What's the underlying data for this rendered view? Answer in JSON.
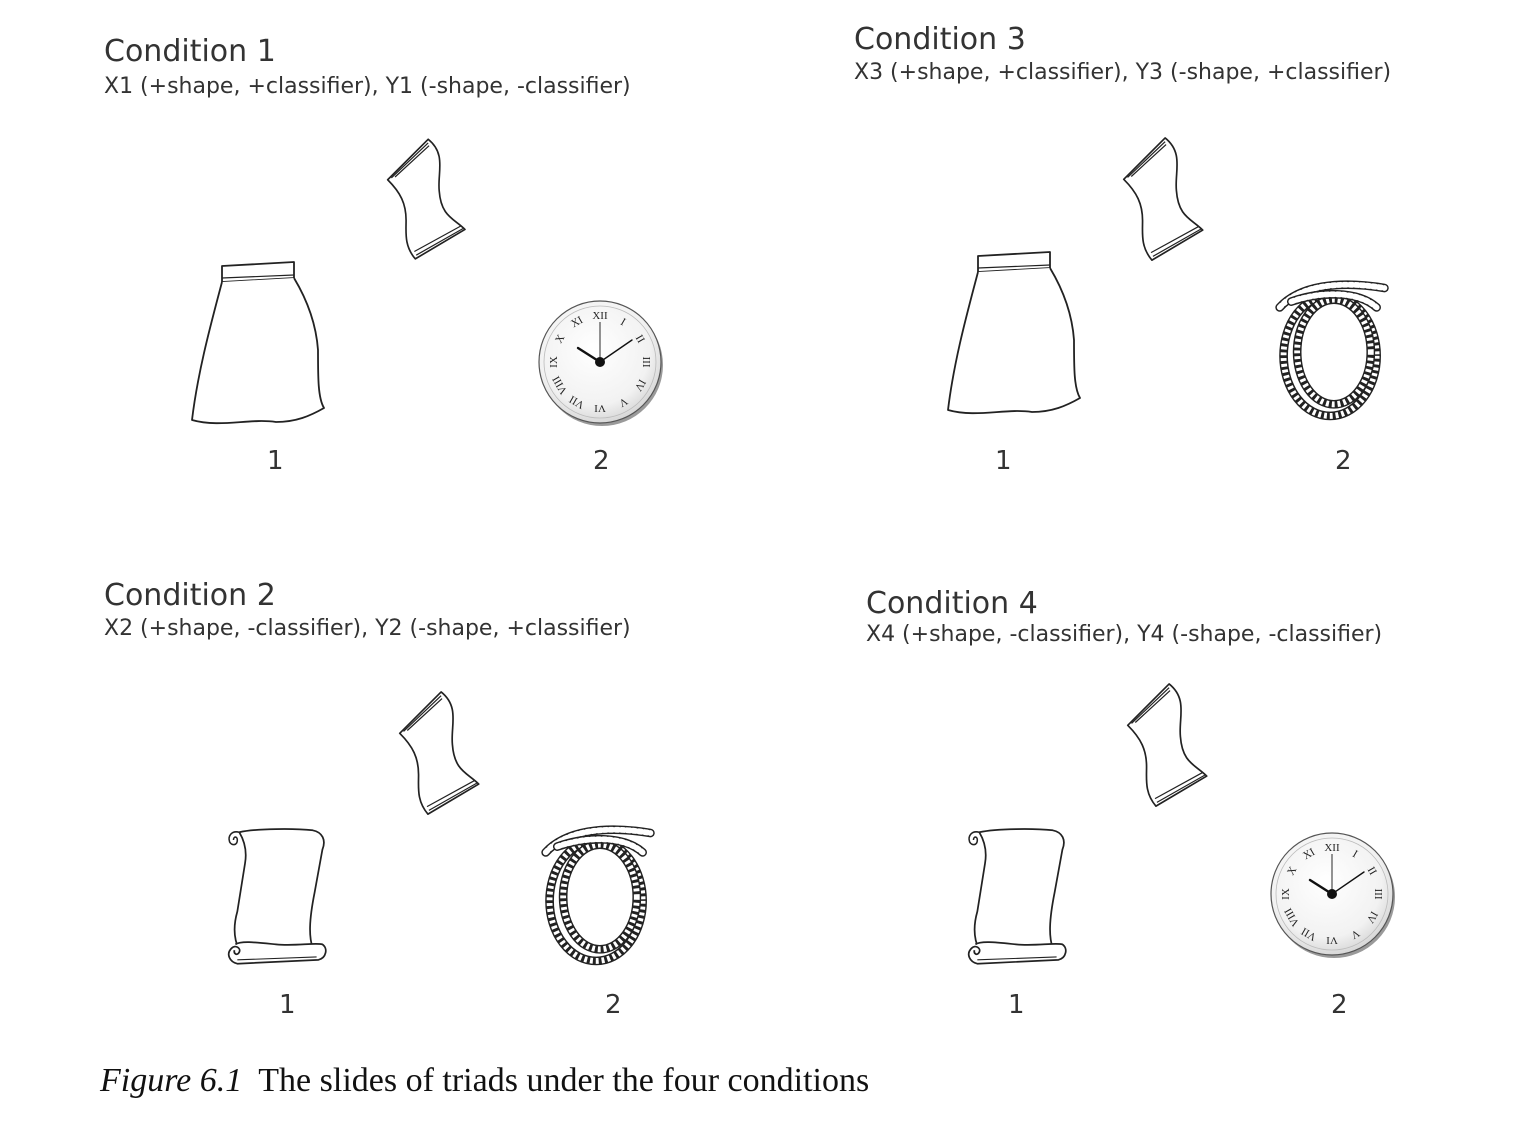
{
  "conditions": [
    {
      "title": "Condition 1",
      "description": "X1 (+shape, +classifier), Y1 (-shape, -classifier)",
      "item_1_label": "1",
      "item_2_label": "2",
      "center_object": "cloth-sheet",
      "item_1_object": "skirt",
      "item_2_object": "clock"
    },
    {
      "title": "Condition 3",
      "description": "X3 (+shape, +classifier), Y3 (-shape, +classifier)",
      "item_1_label": "1",
      "item_2_label": "2",
      "center_object": "cloth-sheet",
      "item_1_object": "skirt",
      "item_2_object": "rope"
    },
    {
      "title": "Condition 2",
      "description": "X2 (+shape, -classifier),  Y2 (-shape, +classifier)",
      "item_1_label": "1",
      "item_2_label": "2",
      "center_object": "cloth-sheet",
      "item_1_object": "scroll",
      "item_2_object": "rope"
    },
    {
      "title": "Condition 4",
      "description": "X4 (+shape, -classifier),  Y4 (-shape, -classifier)",
      "item_1_label": "1",
      "item_2_label": "2",
      "center_object": "cloth-sheet",
      "item_1_object": "scroll",
      "item_2_object": "clock"
    }
  ],
  "caption": {
    "figure_label": "Figure 6.1",
    "text": "The slides of triads under the four conditions"
  },
  "clock_numerals": [
    "XII",
    "I",
    "II",
    "III",
    "IV",
    "V",
    "VI",
    "VII",
    "VIII",
    "IX",
    "X",
    "XI"
  ]
}
